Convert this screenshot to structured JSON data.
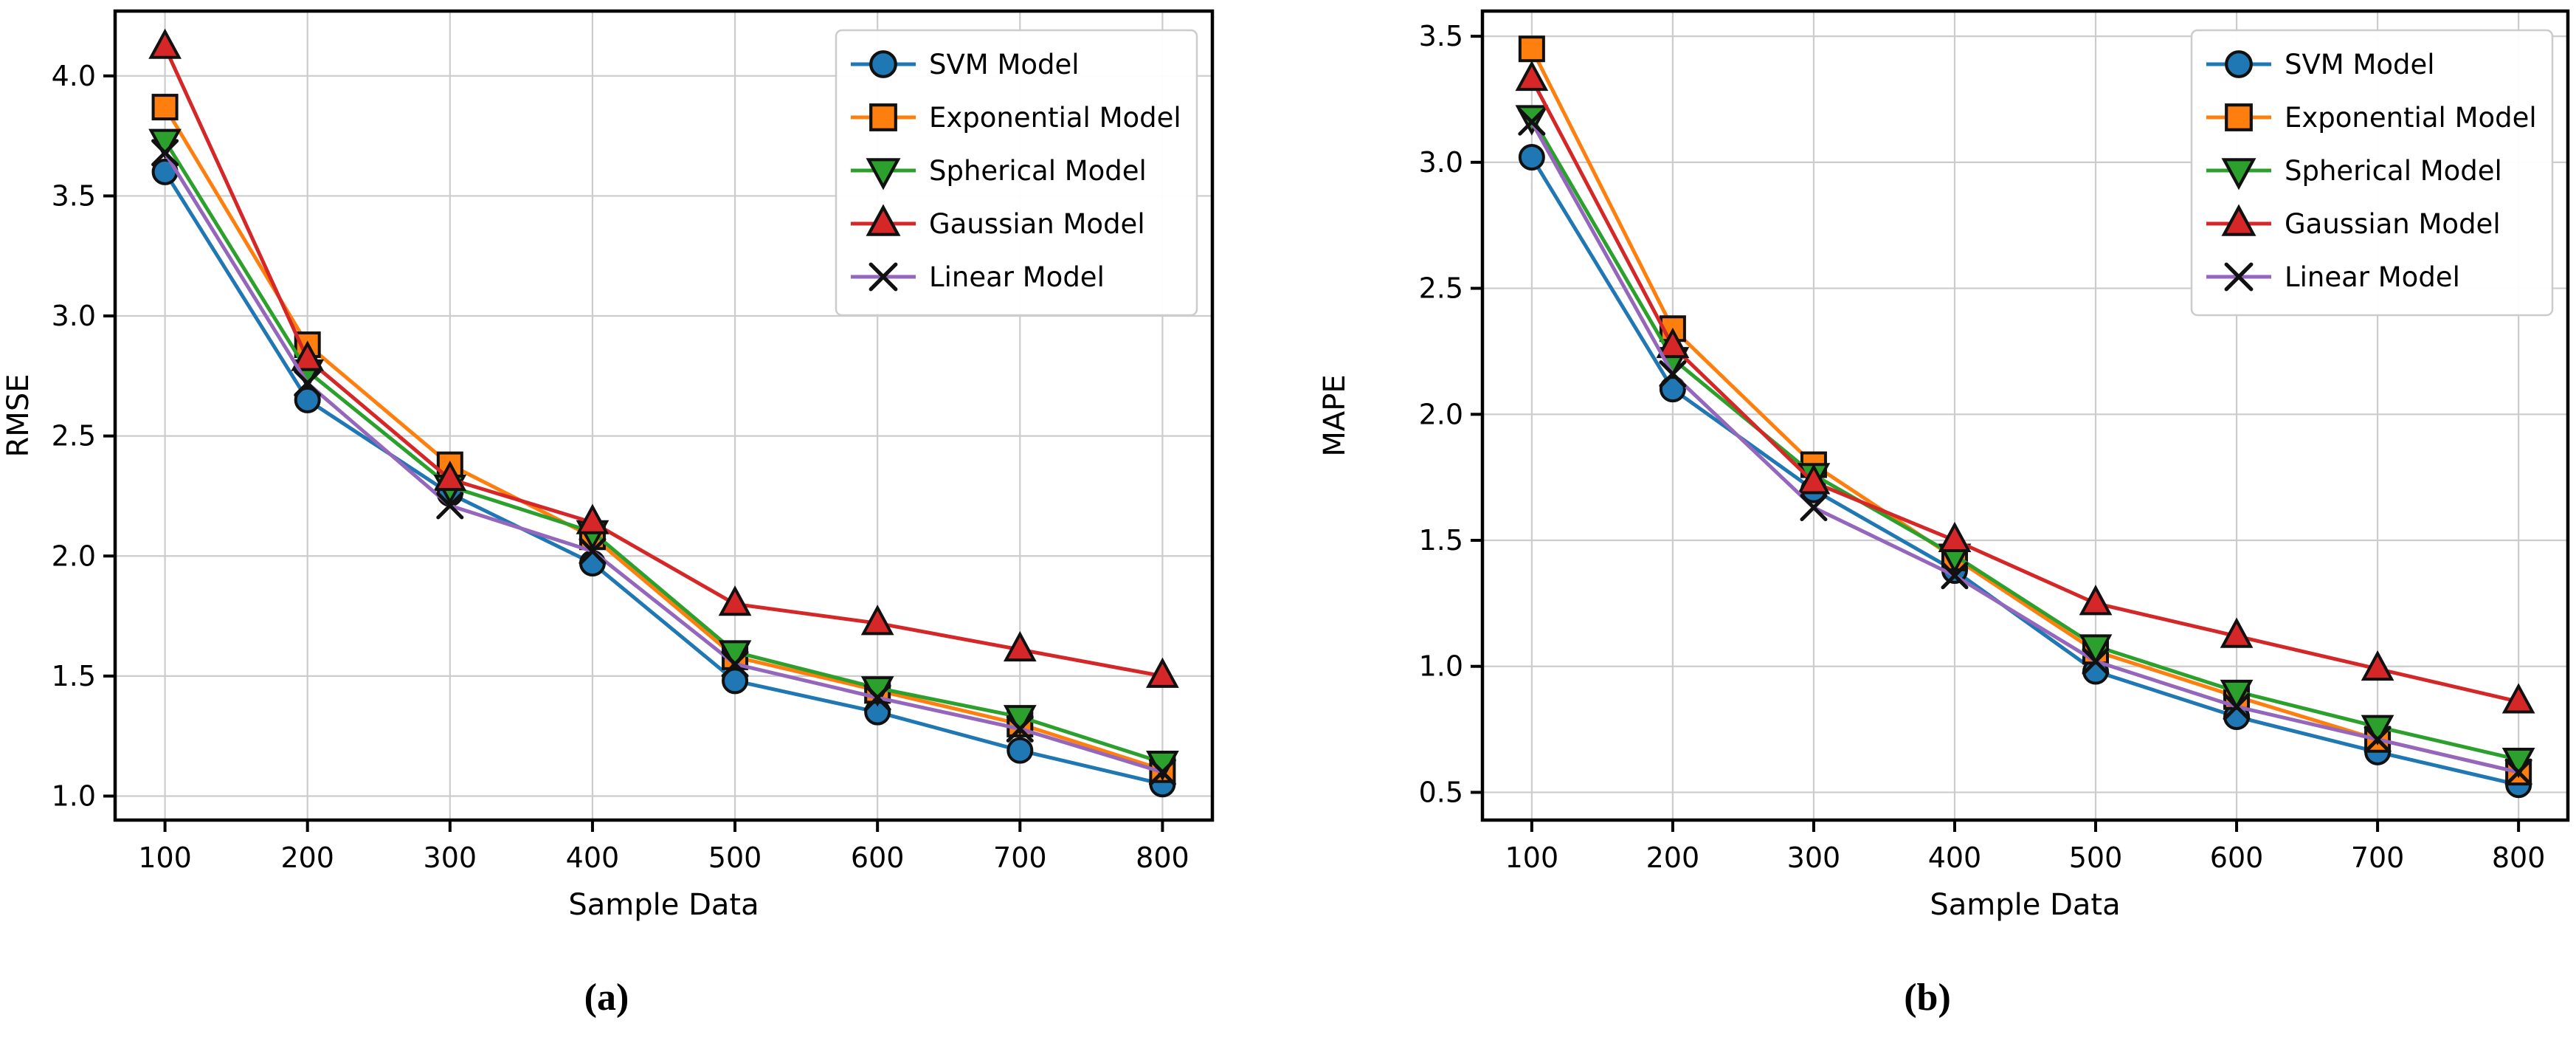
{
  "figure": {
    "background_color": "#ffffff",
    "grid_color": "#cccccc",
    "spine_color": "#000000",
    "tick_label_color": "#000000",
    "legend_border_color": "#cccccc",
    "legend_background": "#ffffff"
  },
  "chart_data": [
    {
      "type": "line",
      "caption": "(a)",
      "xlabel": "Sample Data",
      "ylabel": "RMSE",
      "x": [
        100,
        200,
        300,
        400,
        500,
        600,
        700,
        800
      ],
      "xtick_labels": [
        "100",
        "200",
        "300",
        "400",
        "500",
        "600",
        "700",
        "800"
      ],
      "yticks": [
        1.0,
        1.5,
        2.0,
        2.5,
        3.0,
        3.5,
        4.0
      ],
      "ytick_labels": [
        "1.0",
        "1.5",
        "2.0",
        "2.5",
        "3.0",
        "3.5",
        "4.0"
      ],
      "xlim": [
        65,
        835
      ],
      "ylim": [
        0.9,
        4.27
      ],
      "grid": true,
      "legend_position": "upper right",
      "series": [
        {
          "name": "SVM Model",
          "marker": "circle-icon",
          "color": "#1f77b4",
          "values": [
            3.6,
            2.65,
            2.26,
            1.97,
            1.48,
            1.35,
            1.19,
            1.05
          ]
        },
        {
          "name": "Exponential Model",
          "marker": "square-icon",
          "color": "#ff7f0e",
          "values": [
            3.87,
            2.88,
            2.38,
            2.08,
            1.58,
            1.44,
            1.3,
            1.11
          ]
        },
        {
          "name": "Spherical Model",
          "marker": "triangle-down-icon",
          "color": "#2ca02c",
          "values": [
            3.73,
            2.77,
            2.29,
            2.1,
            1.6,
            1.45,
            1.33,
            1.14
          ]
        },
        {
          "name": "Gaussian Model",
          "marker": "triangle-up-icon",
          "color": "#d62728",
          "values": [
            4.12,
            2.82,
            2.32,
            2.14,
            1.8,
            1.72,
            1.61,
            1.5
          ]
        },
        {
          "name": "Linear Model",
          "marker": "x-icon",
          "color": "#9467bd",
          "values": [
            3.68,
            2.72,
            2.21,
            2.02,
            1.55,
            1.41,
            1.28,
            1.1
          ]
        }
      ]
    },
    {
      "type": "line",
      "caption": "(b)",
      "xlabel": "Sample Data",
      "ylabel": "MAPE",
      "x": [
        100,
        200,
        300,
        400,
        500,
        600,
        700,
        800
      ],
      "xtick_labels": [
        "100",
        "200",
        "300",
        "400",
        "500",
        "600",
        "700",
        "800"
      ],
      "yticks": [
        0.5,
        1.0,
        1.5,
        2.0,
        2.5,
        3.0,
        3.5
      ],
      "ytick_labels": [
        "0.5",
        "1.0",
        "1.5",
        "2.0",
        "2.5",
        "3.0",
        "3.5"
      ],
      "xlim": [
        65,
        835
      ],
      "ylim": [
        0.39,
        3.6
      ],
      "grid": true,
      "legend_position": "upper right",
      "series": [
        {
          "name": "SVM Model",
          "marker": "circle-icon",
          "color": "#1f77b4",
          "values": [
            3.02,
            2.1,
            1.7,
            1.38,
            0.98,
            0.8,
            0.66,
            0.53
          ]
        },
        {
          "name": "Exponential Model",
          "marker": "square-icon",
          "color": "#ff7f0e",
          "values": [
            3.45,
            2.34,
            1.8,
            1.43,
            1.06,
            0.88,
            0.71,
            0.58
          ]
        },
        {
          "name": "Spherical Model",
          "marker": "triangle-down-icon",
          "color": "#2ca02c",
          "values": [
            3.18,
            2.22,
            1.76,
            1.44,
            1.08,
            0.9,
            0.76,
            0.63
          ]
        },
        {
          "name": "Gaussian Model",
          "marker": "triangle-up-icon",
          "color": "#d62728",
          "values": [
            3.33,
            2.27,
            1.73,
            1.5,
            1.25,
            1.12,
            0.99,
            0.86
          ]
        },
        {
          "name": "Linear Model",
          "marker": "x-icon",
          "color": "#9467bd",
          "values": [
            3.16,
            2.16,
            1.63,
            1.36,
            1.02,
            0.84,
            0.71,
            0.58
          ]
        }
      ]
    }
  ]
}
